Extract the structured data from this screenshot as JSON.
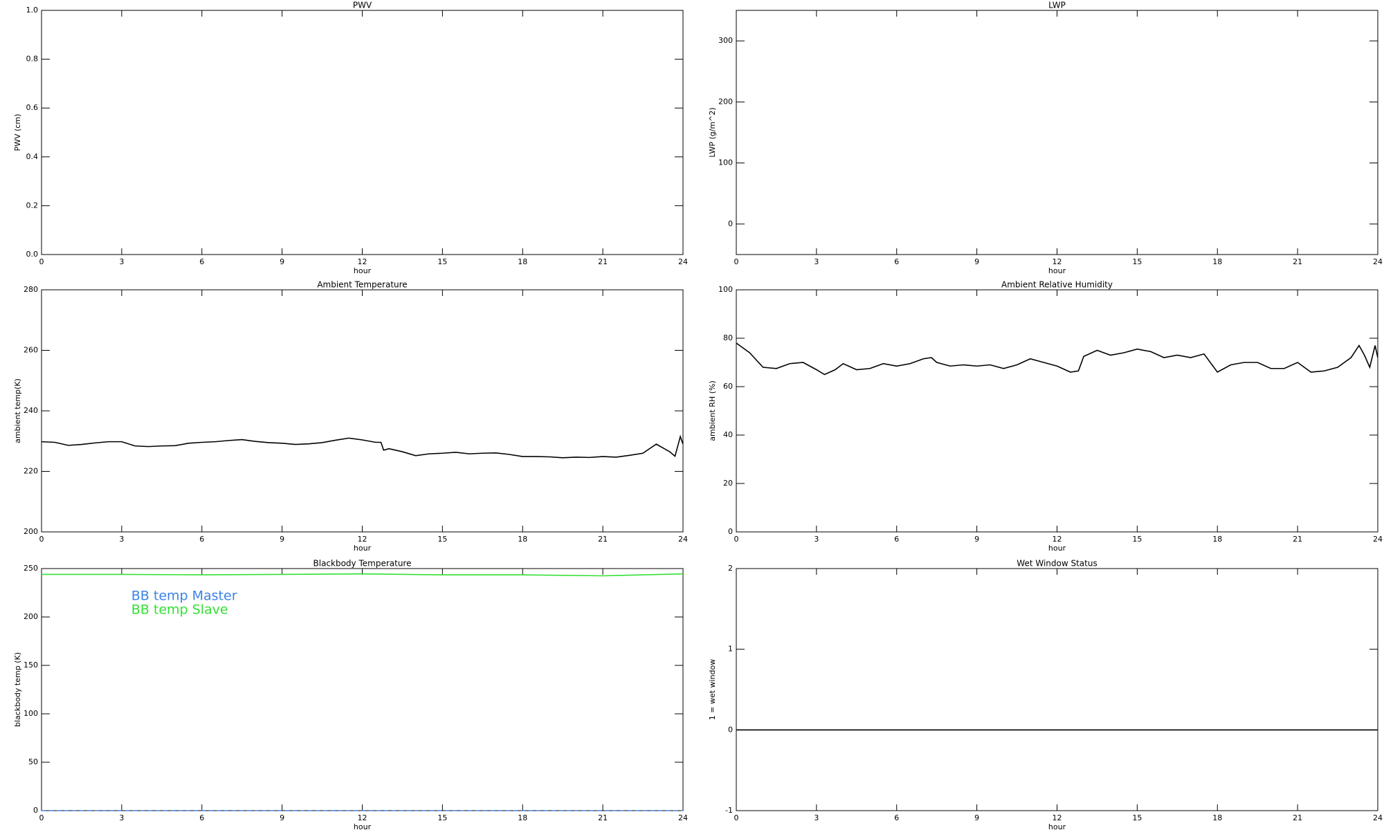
{
  "chart_data": [
    {
      "type": "line",
      "title": "PWV",
      "xlabel": "hour",
      "ylabel": "PWV (cm)",
      "xlim": [
        0,
        24
      ],
      "xticks": [
        0,
        3,
        6,
        9,
        12,
        15,
        18,
        21,
        24
      ],
      "ylim": [
        0,
        1
      ],
      "yticks": [
        {
          "value": 0,
          "label": "0.0"
        },
        0.2,
        0.4,
        0.6,
        0.8,
        {
          "value": 1,
          "label": "1.0"
        }
      ],
      "series": []
    },
    {
      "type": "line",
      "title": "LWP",
      "xlabel": "hour",
      "ylabel": "LWP (g/m^2)",
      "xlim": [
        0,
        24
      ],
      "xticks": [
        0,
        3,
        6,
        9,
        12,
        15,
        18,
        21,
        24
      ],
      "ylim": [
        -50,
        350
      ],
      "yticks": [
        0,
        100,
        200,
        300
      ],
      "series": []
    },
    {
      "type": "line",
      "title": "Ambient Temperature",
      "xlabel": "hour",
      "ylabel": "ambient temp(K)",
      "xlim": [
        0,
        24
      ],
      "xticks": [
        0,
        3,
        6,
        9,
        12,
        15,
        18,
        21,
        24
      ],
      "ylim": [
        200,
        280
      ],
      "yticks": [
        200,
        220,
        240,
        260,
        280
      ],
      "x": [
        0,
        0.5,
        1,
        1.5,
        2,
        2.5,
        3,
        3.5,
        4,
        4.5,
        5,
        5.5,
        6,
        6.5,
        7,
        7.5,
        8,
        8.5,
        9,
        9.5,
        10,
        10.5,
        11,
        11.5,
        12,
        12.5,
        12.7,
        12.8,
        13,
        13.5,
        14,
        14.5,
        15,
        15.5,
        16,
        16.5,
        17,
        17.5,
        18,
        18.5,
        19,
        19.5,
        20,
        20.5,
        21,
        21.5,
        22,
        22.5,
        23,
        23.3,
        23.5,
        23.7,
        23.9,
        24
      ],
      "series": [
        {
          "name": "ambient temp",
          "color": "#000000",
          "values": [
            229.8,
            229.6,
            228.6,
            228.9,
            229.4,
            229.8,
            229.8,
            228.4,
            228.2,
            228.4,
            228.5,
            229.3,
            229.6,
            229.8,
            230.2,
            230.5,
            229.9,
            229.5,
            229.3,
            228.9,
            229.1,
            229.5,
            230.3,
            231.0,
            230.4,
            229.6,
            229.6,
            227.0,
            227.5,
            226.5,
            225.2,
            225.8,
            226.0,
            226.3,
            225.8,
            226.0,
            226.1,
            225.6,
            224.9,
            224.9,
            224.8,
            224.5,
            224.7,
            224.6,
            224.9,
            224.7,
            225.3,
            226.0,
            229.0,
            227.5,
            226.5,
            225.0,
            231.5,
            229.0
          ]
        }
      ]
    },
    {
      "type": "line",
      "title": "Ambient Relative Humidity",
      "xlabel": "hour",
      "ylabel": "ambient RH (%)",
      "xlim": [
        0,
        24
      ],
      "xticks": [
        0,
        3,
        6,
        9,
        12,
        15,
        18,
        21,
        24
      ],
      "ylim": [
        0,
        100
      ],
      "yticks": [
        0,
        20,
        40,
        60,
        80,
        100
      ],
      "x": [
        0,
        0.5,
        1,
        1.5,
        2,
        2.5,
        3,
        3.3,
        3.7,
        4,
        4.5,
        5,
        5.5,
        6,
        6.5,
        7,
        7.3,
        7.5,
        8,
        8.5,
        9,
        9.5,
        10,
        10.5,
        11,
        11.5,
        12,
        12.5,
        12.8,
        13,
        13.5,
        14,
        14.5,
        15,
        15.5,
        16,
        16.5,
        17,
        17.5,
        18,
        18.5,
        19,
        19.5,
        20,
        20.5,
        21,
        21.5,
        22,
        22.5,
        23,
        23.3,
        23.5,
        23.7,
        23.9,
        24
      ],
      "series": [
        {
          "name": "ambient RH",
          "color": "#000000",
          "values": [
            78,
            74,
            68,
            67.5,
            69.5,
            70,
            67,
            65,
            67,
            69.5,
            67,
            67.5,
            69.5,
            68.5,
            69.5,
            71.5,
            72,
            70,
            68.5,
            69,
            68.5,
            69,
            67.5,
            69,
            71.5,
            70,
            68.5,
            66,
            66.5,
            72.5,
            75,
            73,
            74,
            75.5,
            74.5,
            72,
            73,
            72,
            73.5,
            66,
            69,
            70,
            70,
            67.5,
            67.5,
            70,
            66,
            66.5,
            68,
            72,
            77,
            73,
            68,
            77,
            72
          ]
        }
      ]
    },
    {
      "type": "line",
      "title": "Blackbody Temperature",
      "xlabel": "hour",
      "ylabel": "blackbody temp (K)",
      "xlim": [
        0,
        24
      ],
      "xticks": [
        0,
        3,
        6,
        9,
        12,
        15,
        18,
        21,
        24
      ],
      "ylim": [
        0,
        250
      ],
      "yticks": [
        0,
        50,
        100,
        150,
        200,
        250
      ],
      "legend": "upper left",
      "x": [
        0,
        3,
        6,
        9,
        12,
        15,
        18,
        21,
        24
      ],
      "series": [
        {
          "name": "BB temp Master",
          "color": "#3a82e6",
          "dashed": true,
          "values": [
            0,
            0,
            0,
            0,
            0,
            0,
            0,
            0,
            0
          ]
        },
        {
          "name": "BB temp Slave",
          "color": "#33e033",
          "values": [
            244,
            244,
            243.5,
            244,
            244.5,
            243.5,
            243.5,
            242.5,
            244.5
          ]
        }
      ]
    },
    {
      "type": "line",
      "title": "Wet Window Status",
      "xlabel": "hour",
      "ylabel": "1 = wet window",
      "xlim": [
        0,
        24
      ],
      "xticks": [
        0,
        3,
        6,
        9,
        12,
        15,
        18,
        21,
        24
      ],
      "ylim": [
        -1,
        2
      ],
      "yticks": [
        -1,
        0,
        1,
        2
      ],
      "x": [
        0,
        24
      ],
      "series": [
        {
          "name": "wet window",
          "color": "#000000",
          "values": [
            0,
            0
          ]
        }
      ]
    }
  ]
}
